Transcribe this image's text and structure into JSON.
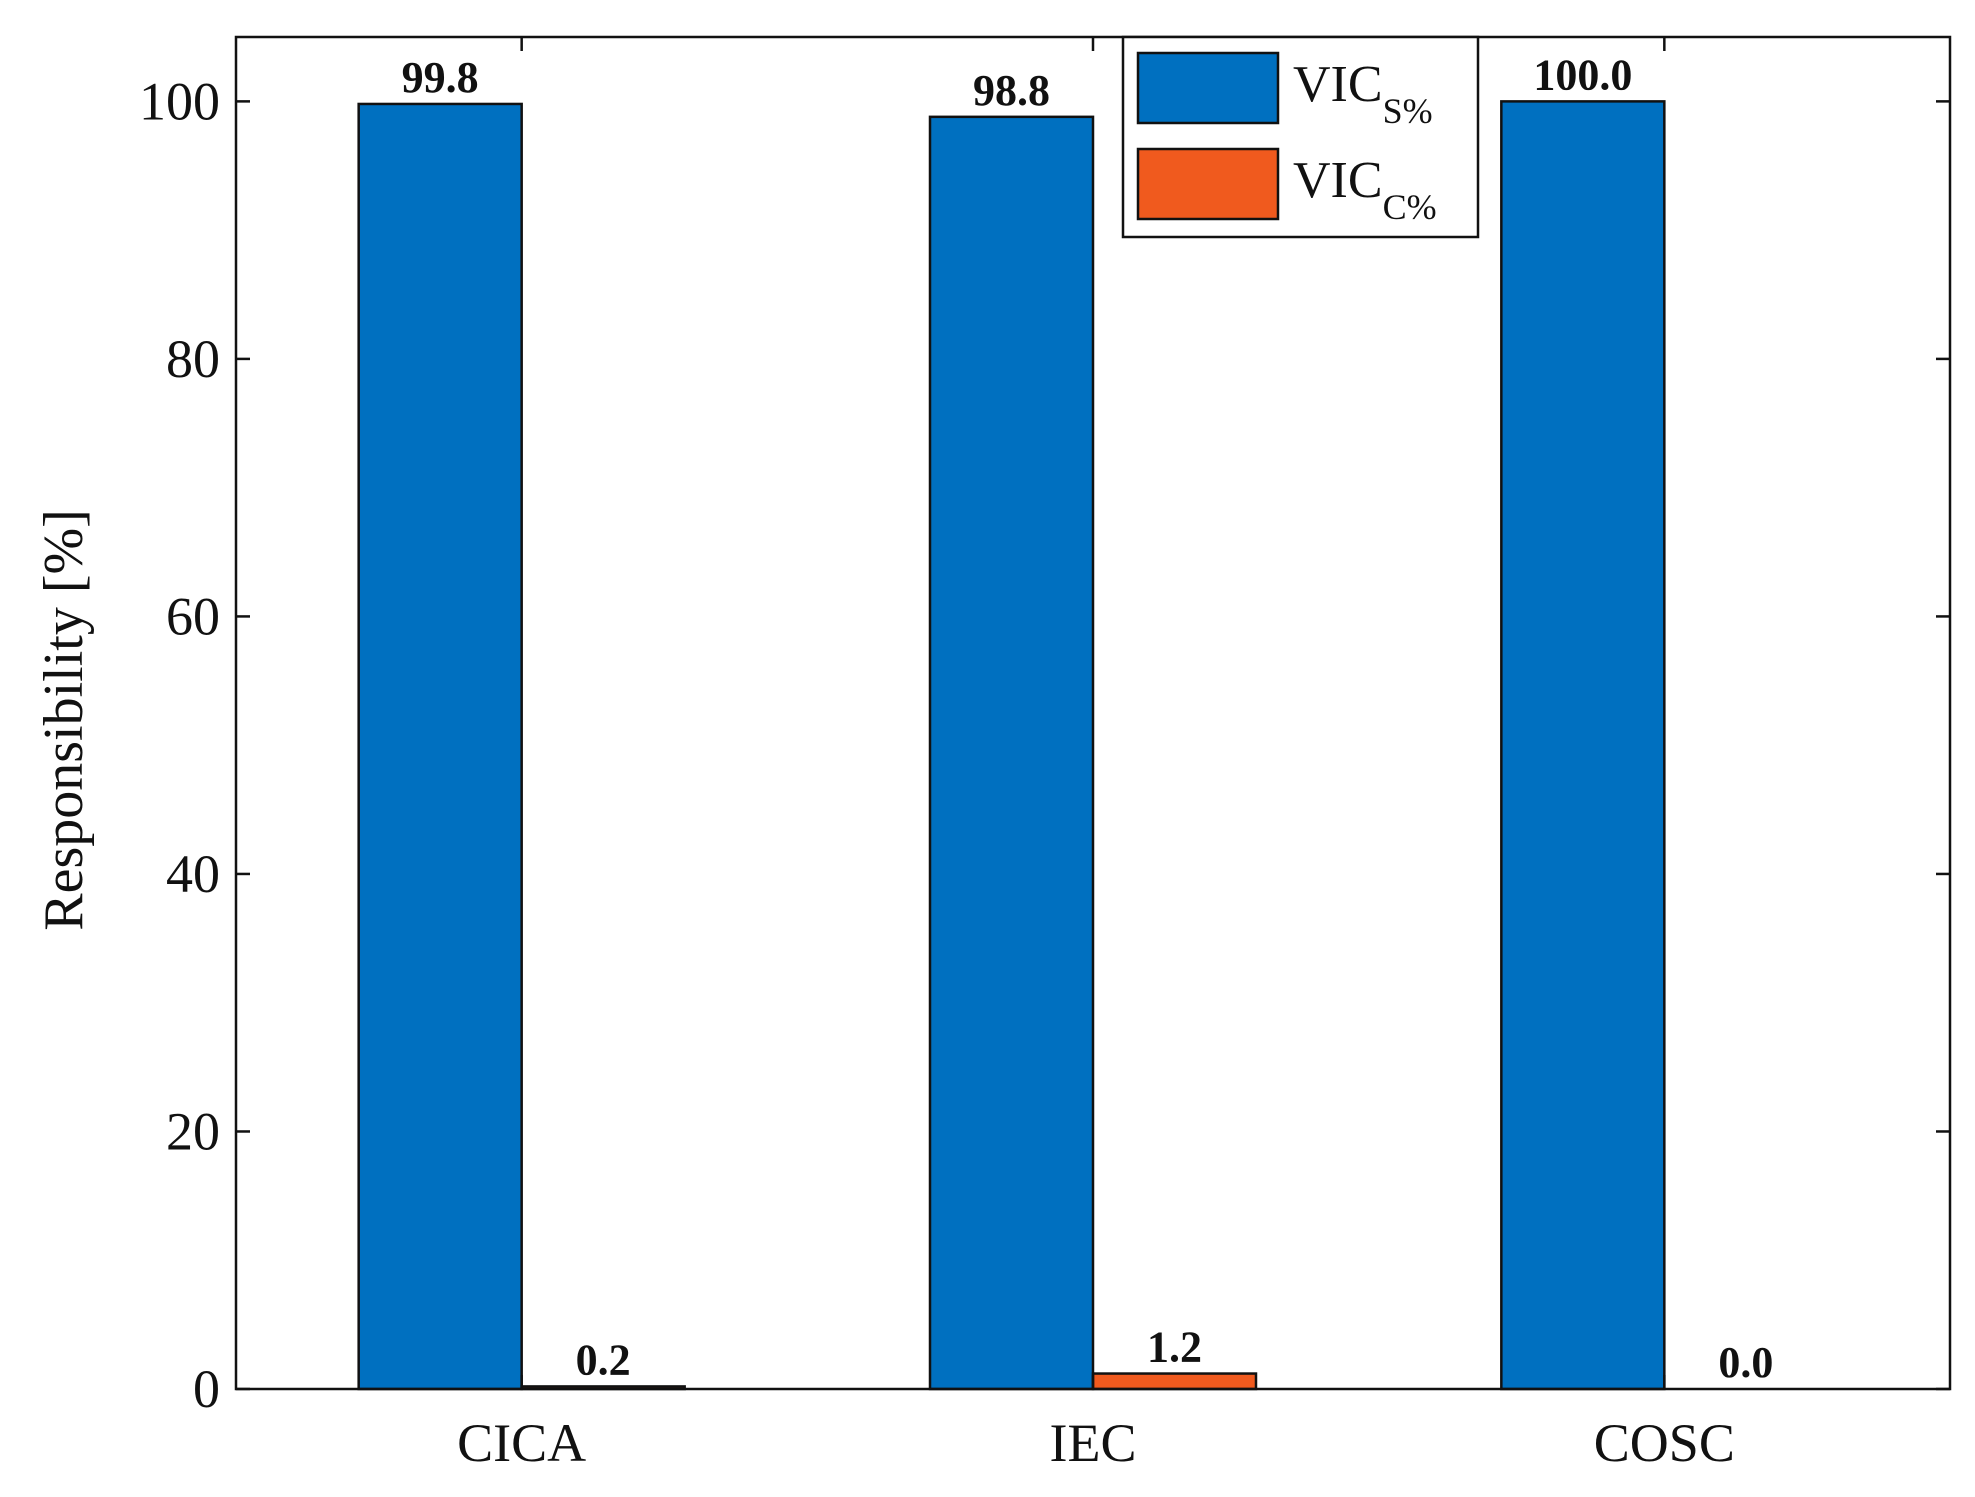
{
  "chart_data": {
    "type": "bar",
    "title": "",
    "xlabel": "",
    "ylabel": "Responsibility [%]",
    "categories": [
      "CICA",
      "IEC",
      "COSC"
    ],
    "series": [
      {
        "name": "VIC",
        "subscript": "S%",
        "color": "#0070C0",
        "values": [
          99.8,
          98.8,
          100.0
        ],
        "labels": [
          "99.8",
          "98.8",
          "100.0"
        ]
      },
      {
        "name": "VIC",
        "subscript": "C%",
        "color": "#F05A1E",
        "values": [
          0.2,
          1.2,
          0.0
        ],
        "labels": [
          "0.2",
          "1.2",
          "0.0"
        ]
      }
    ],
    "ylim": [
      0,
      105
    ],
    "yticks": [
      0,
      20,
      40,
      60,
      80,
      100
    ],
    "ytick_labels": [
      "0",
      "20",
      "40",
      "60",
      "80",
      "100"
    ],
    "grid": false,
    "legend_position": "top-right"
  }
}
